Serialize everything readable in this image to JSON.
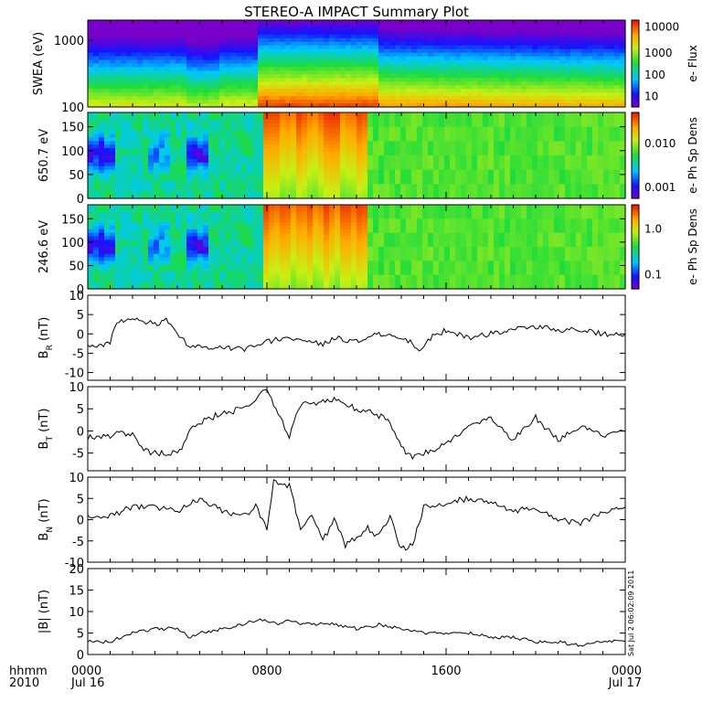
{
  "title": "STEREO-A IMPACT Summary Plot",
  "time_label": "hhmm",
  "year_label": "2010",
  "x_ticks": [
    "0000",
    "0800",
    "1600",
    "0000"
  ],
  "x_date_labels": [
    "Jul 16",
    "Jul 17"
  ],
  "side_stamp": "Sat Jul  2 06:02:09 2011",
  "chart_data": [
    {
      "type": "heatmap",
      "ylabel": "SWEA (eV)",
      "yscale": "log",
      "ylim": [
        100,
        2000
      ],
      "yticks": [
        "1000",
        "100"
      ],
      "colorbar": {
        "label": "e- Flux",
        "scale": "log",
        "range": [
          3,
          15000
        ],
        "ticks": [
          "10000",
          "1000",
          "100",
          "10"
        ]
      },
      "description_cues": {
        "high_flux_low_energy_after": "0800"
      }
    },
    {
      "type": "heatmap",
      "ylabel": "650.7 eV",
      "ylim": [
        0,
        180
      ],
      "yticks": [
        "150",
        "100",
        "50",
        "0"
      ],
      "colorbar": {
        "label": "e- Ph Sp Dens",
        "scale": "log",
        "range": [
          0.0005,
          0.04
        ],
        "ticks": [
          "0.010",
          "0.001"
        ]
      }
    },
    {
      "type": "heatmap",
      "ylabel": "246.6 eV",
      "ylim": [
        0,
        180
      ],
      "yticks": [
        "150",
        "100",
        "50",
        "0"
      ],
      "colorbar": {
        "label": "e- Ph Sp Dens",
        "scale": "log",
        "range": [
          0.06,
          2.2
        ],
        "ticks": [
          "1.0",
          "0.1"
        ]
      }
    },
    {
      "type": "line",
      "ylabel": "B_R (nT)",
      "ylim": [
        -12,
        10
      ],
      "yticks": [
        10,
        5,
        0,
        -5,
        -10
      ],
      "x": [
        0,
        1,
        1.2,
        1.8,
        2.4,
        3.0,
        3.5,
        4.2,
        4.6,
        5.0,
        6.0,
        7.0,
        8.0,
        9.0,
        10.0,
        10.5,
        11.0,
        12.0,
        13.0,
        13.8,
        14.4,
        14.8,
        15.3,
        16.0,
        17.0,
        18.0,
        19.0,
        20.0,
        21.0,
        22.0,
        23.0,
        24.0
      ],
      "y": [
        -3,
        -2.5,
        2,
        4,
        3.5,
        2.5,
        3.5,
        -1.5,
        -3,
        -3.5,
        -3.5,
        -4,
        -2,
        -1,
        -2,
        -2.5,
        -1,
        -2,
        0,
        -1,
        -2,
        -5,
        -1,
        1,
        -1,
        0,
        1,
        2,
        1,
        1,
        0,
        0
      ]
    },
    {
      "type": "line",
      "ylabel": "B_T (nT)",
      "ylim": [
        -9,
        10
      ],
      "yticks": [
        10,
        5,
        0,
        -5
      ],
      "x": [
        0,
        0.8,
        1.4,
        2.0,
        2.6,
        3.0,
        3.6,
        4.2,
        4.5,
        5.0,
        6.0,
        7.0,
        7.6,
        8.0,
        8.5,
        9.0,
        9.5,
        10.0,
        11.0,
        12.0,
        12.8,
        13.5,
        14.0,
        14.5,
        15.0,
        15.5,
        16.0,
        17.0,
        18.0,
        19.0,
        20.0,
        21.0,
        22.0,
        23.0,
        24.0
      ],
      "y": [
        -1.5,
        -1.5,
        0,
        -1,
        -4.5,
        -5,
        -5,
        -4.5,
        0,
        2,
        4,
        5,
        8,
        9,
        4,
        -1,
        6,
        6,
        7,
        5,
        4,
        2,
        -4,
        -6,
        -5,
        -4,
        -3,
        1,
        3,
        -2,
        3,
        -2,
        1,
        -1,
        0
      ]
    },
    {
      "type": "line",
      "ylabel": "B_N (nT)",
      "ylim": [
        -10,
        10
      ],
      "yticks": [
        10,
        5,
        0,
        -5,
        -10
      ],
      "x": [
        0,
        1.0,
        1.5,
        2.0,
        3.0,
        4.0,
        5.0,
        6.0,
        7.0,
        7.5,
        8.0,
        8.3,
        9.0,
        9.5,
        10.0,
        10.5,
        11.0,
        11.5,
        12.0,
        12.5,
        13.0,
        13.5,
        14.0,
        14.5,
        15.0,
        16.0,
        17.0,
        18.0,
        19.0,
        20.0,
        21.0,
        22.0,
        23.0,
        24.0
      ],
      "y": [
        1,
        1,
        2,
        3,
        3,
        2,
        5,
        2,
        1,
        3,
        -2,
        9,
        8,
        -2,
        1,
        -5,
        0,
        -6,
        -4,
        -2,
        -4,
        1,
        -7,
        -6,
        3,
        4,
        5,
        4,
        2,
        3,
        0,
        -1,
        2,
        3
      ]
    },
    {
      "type": "line",
      "ylabel": "|B| (nT)",
      "ylim": [
        0,
        20
      ],
      "yticks": [
        20,
        15,
        10,
        5,
        0
      ],
      "x": [
        0,
        1,
        1.5,
        2,
        3,
        4,
        4.5,
        5,
        6,
        7,
        7.5,
        8,
        8.5,
        9,
        9.5,
        10,
        11,
        12,
        13,
        14,
        15,
        16,
        17,
        18,
        19,
        20,
        21,
        22,
        23,
        24
      ],
      "y": [
        3,
        3,
        4,
        5,
        6,
        6,
        4,
        5,
        6,
        7,
        8,
        8,
        7,
        8,
        7,
        7,
        7,
        6,
        7,
        6,
        5,
        5,
        5,
        4,
        4,
        3,
        3,
        2,
        3,
        3
      ]
    }
  ]
}
